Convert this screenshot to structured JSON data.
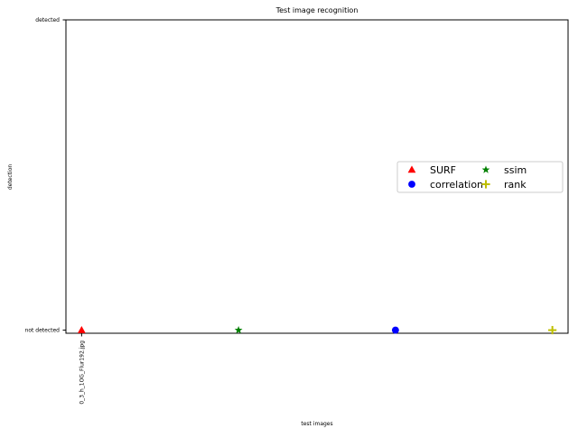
{
  "chart_data": {
    "type": "scatter",
    "title": "Test image recognition",
    "xlabel": "test images",
    "ylabel": "detection",
    "x_categories": [
      "0_3_h_1OG_Flur192.jpg"
    ],
    "y_categories": [
      "not detected",
      "detected"
    ],
    "xlim": [
      -0.1,
      3.1
    ],
    "ylim": [
      -0.01,
      1.0
    ],
    "grid": false,
    "legend_placement": "center-right",
    "legend_columns": 2,
    "series": [
      {
        "name": "SURF",
        "marker": "triangle",
        "color": "#ff0000",
        "points": [
          {
            "x": 0,
            "y": "not detected"
          }
        ]
      },
      {
        "name": "ssim",
        "marker": "star",
        "color": "#008000",
        "points": [
          {
            "x": 1,
            "y": "not detected"
          }
        ]
      },
      {
        "name": "correlation",
        "marker": "circle",
        "color": "#0000ff",
        "points": [
          {
            "x": 2,
            "y": "not detected"
          }
        ]
      },
      {
        "name": "rank",
        "marker": "plus",
        "color": "#bfbf00",
        "points": [
          {
            "x": 3,
            "y": "not detected"
          }
        ]
      }
    ]
  }
}
